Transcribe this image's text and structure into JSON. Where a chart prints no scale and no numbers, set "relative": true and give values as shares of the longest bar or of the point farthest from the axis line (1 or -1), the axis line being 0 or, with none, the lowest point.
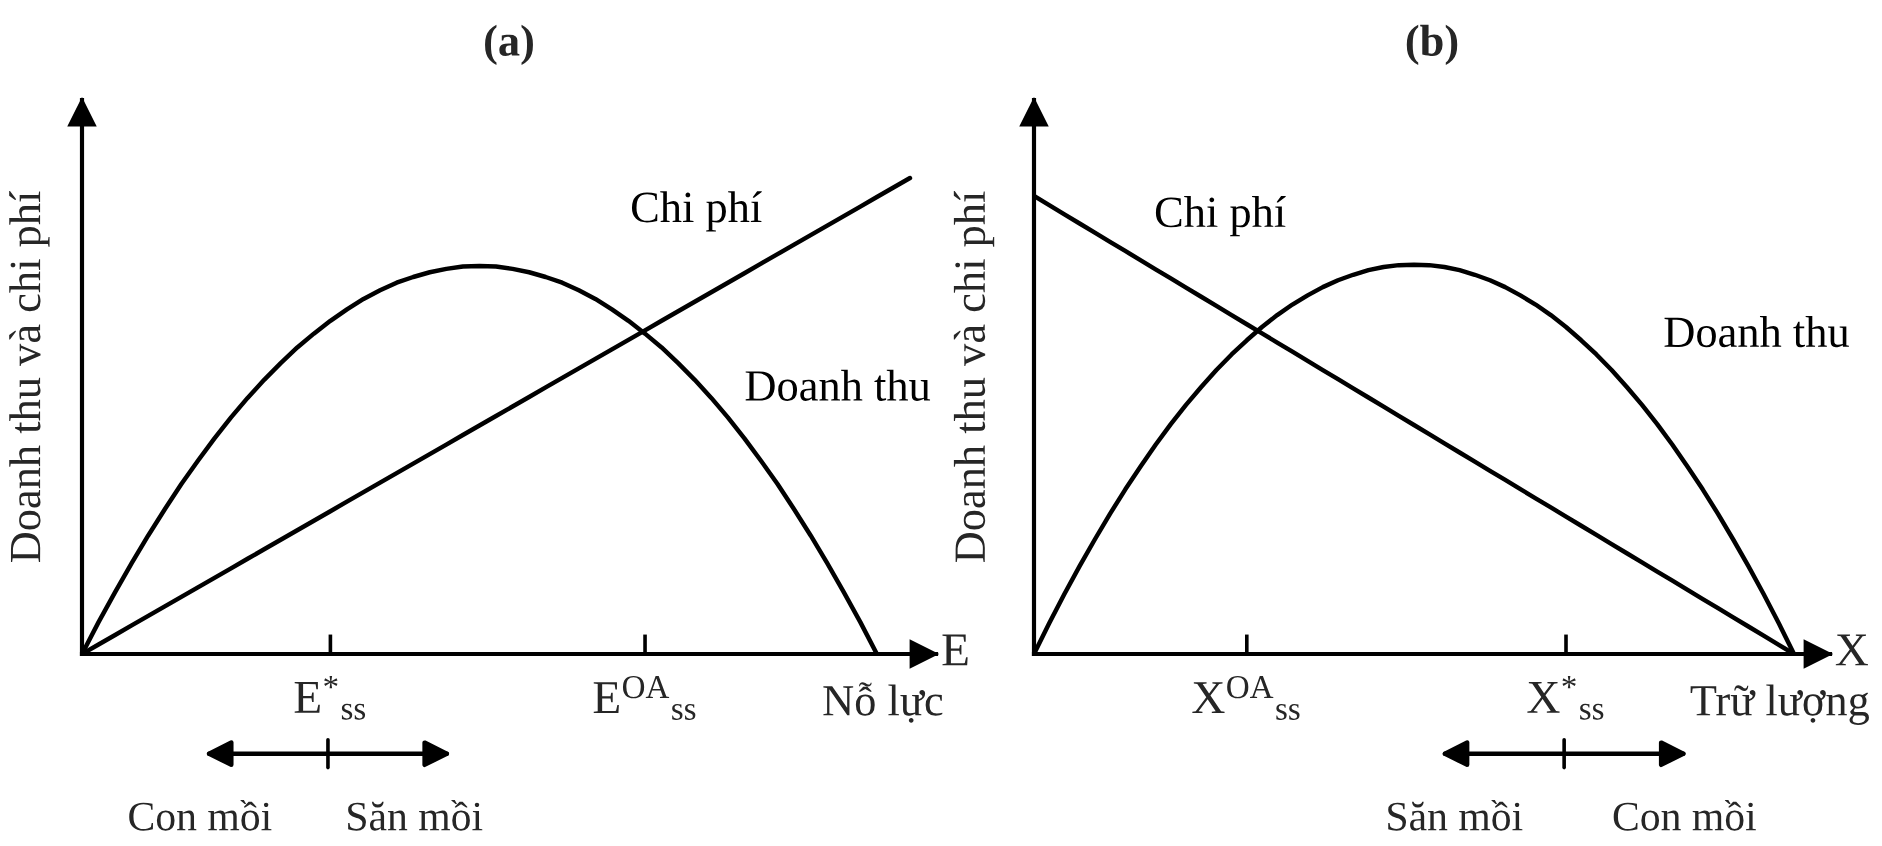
{
  "chart_data": [
    {
      "type": "line",
      "title": "(a)",
      "ylabel": "Doanh thu và chi phí",
      "xlabel": "Nỗ lực",
      "relative": true,
      "tick_labels": "x",
      "categories": [
        null,
        null,
        null,
        null,
        null,
        null,
        null,
        null,
        null,
        null,
        null,
        null,
        null,
        null,
        null,
        "E$^{*}$$_{ss}$",
        null,
        null,
        null,
        null,
        null,
        null,
        null,
        null,
        null,
        null,
        null,
        null,
        null,
        null,
        null,
        null,
        null,
        null,
        "E$^{OA}$$_{ss}$",
        null,
        null,
        null,
        null,
        null,
        null,
        null,
        null,
        null,
        null,
        null,
        null,
        null,
        null,
        null,
        null
      ],
      "series": [
        {
          "name": "Chi phí",
          "color": "#000000",
          "values": [
            0,
            0.02,
            0.04,
            0.06,
            0.08,
            0.1,
            0.12,
            0.14,
            0.16,
            0.18,
            0.2,
            0.22,
            0.24,
            0.26,
            0.28,
            0.3,
            0.32,
            0.34,
            0.36,
            0.38,
            0.4,
            0.42,
            0.44,
            0.46,
            0.48,
            0.5,
            0.52,
            0.54,
            0.56,
            0.58,
            0.6,
            0.62,
            0.64,
            0.66,
            0.68,
            0.7,
            0.72,
            0.74,
            0.76,
            0.78,
            0.8,
            0.82,
            0.84,
            0.86,
            0.88,
            0.9,
            0.92,
            0.94,
            0.96,
            0.98,
            1
          ]
        },
        {
          "name": "Doanh thu",
          "color": "#000000",
          "values": [
            0,
            0.067,
            0.13,
            0.191,
            0.249,
            0.304,
            0.357,
            0.406,
            0.453,
            0.497,
            0.538,
            0.576,
            0.611,
            0.644,
            0.673,
            0.7,
            0.724,
            0.746,
            0.764,
            0.78,
            0.792,
            0.802,
            0.809,
            0.814,
            0.815,
            0.814,
            0.809,
            0.802,
            0.792,
            0.78,
            0.764,
            0.746,
            0.724,
            0.7,
            0.673,
            0.644,
            0.611,
            0.576,
            0.538,
            0.497,
            0.453,
            0.406,
            0.357,
            0.304,
            0.249,
            0.191,
            0.13,
            0.067,
            0,
            null,
            null
          ]
        }
      ],
      "annotations": [
        "E",
        "Con mồi",
        "Săn mồi"
      ]
    },
    {
      "type": "line",
      "title": "(b)",
      "ylabel": "Doanh thu và chi phí",
      "xlabel": "Trữ lượng",
      "relative": true,
      "tick_labels": "x",
      "categories": [
        null,
        null,
        null,
        null,
        null,
        null,
        null,
        null,
        null,
        null,
        null,
        null,
        null,
        null,
        "X$^{OA}$$_{ss}$",
        null,
        null,
        null,
        null,
        null,
        null,
        null,
        null,
        null,
        null,
        null,
        null,
        null,
        null,
        null,
        null,
        null,
        null,
        null,
        null,
        "X$^{*}$$_{ss}$",
        null,
        null,
        null,
        null,
        null,
        null,
        null,
        null,
        null,
        null,
        null,
        null,
        null,
        null,
        null
      ],
      "series": [
        {
          "name": "Chi phí",
          "color": "#000000",
          "values": [
            1,
            0.98,
            0.96,
            0.94,
            0.92,
            0.9,
            0.88,
            0.86,
            0.84,
            0.82,
            0.8,
            0.78,
            0.76,
            0.74,
            0.72,
            0.7,
            0.68,
            0.66,
            0.64,
            0.62,
            0.6,
            0.58,
            0.56,
            0.54,
            0.52,
            0.5,
            0.48,
            0.46,
            0.44,
            0.42,
            0.4,
            0.38,
            0.36,
            0.34,
            0.32,
            0.3,
            0.28,
            0.26,
            0.24,
            0.22,
            0.2,
            0.18,
            0.16,
            0.14,
            0.12,
            0.1,
            0.08,
            0.06,
            0.04,
            0.02,
            0
          ]
        },
        {
          "name": "Doanh thu",
          "color": "#000000",
          "values": [
            0,
            0.067,
            0.131,
            0.192,
            0.25,
            0.306,
            0.359,
            0.409,
            0.457,
            0.502,
            0.544,
            0.583,
            0.62,
            0.654,
            0.685,
            0.714,
            0.74,
            0.763,
            0.783,
            0.801,
            0.816,
            0.828,
            0.838,
            0.845,
            0.849,
            0.85,
            0.849,
            0.845,
            0.838,
            0.828,
            0.816,
            0.801,
            0.783,
            0.763,
            0.74,
            0.714,
            0.685,
            0.654,
            0.62,
            0.583,
            0.544,
            0.502,
            0.457,
            0.409,
            0.359,
            0.306,
            0.25,
            0.192,
            0.131,
            0.067,
            0
          ]
        }
      ],
      "annotations": [
        "X",
        "Săn mồi",
        "Con mồi"
      ]
    }
  ]
}
